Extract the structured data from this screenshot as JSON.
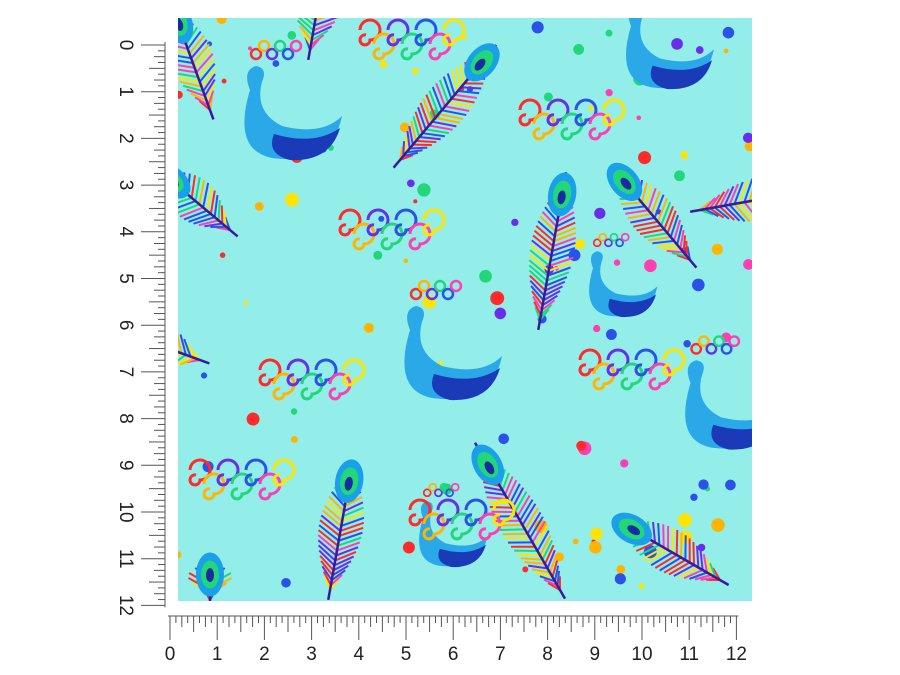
{
  "ruler": {
    "vertical_labels": [
      0,
      1,
      2,
      3,
      4,
      5,
      6,
      7,
      8,
      9,
      10,
      11,
      12
    ],
    "horizontal_labels": [
      0,
      1,
      2,
      3,
      4,
      5,
      6,
      7,
      8,
      9,
      10,
      11,
      12
    ]
  }
}
